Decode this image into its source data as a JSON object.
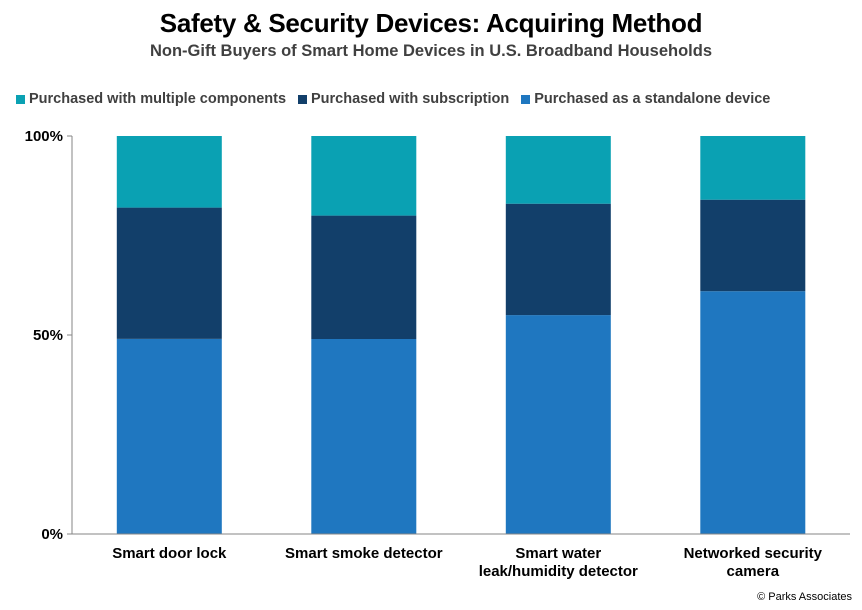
{
  "chart_data": {
    "type": "bar",
    "stacked": true,
    "title": "Safety & Security Devices: Acquiring Method",
    "subtitle": "Non-Gift Buyers of Smart Home Devices  in U.S. Broadband Households",
    "categories": [
      [
        "Smart door lock"
      ],
      [
        "Smart smoke detector"
      ],
      [
        "Smart water",
        "leak/humidity detector"
      ],
      [
        "Networked security",
        "camera"
      ]
    ],
    "series": [
      {
        "name": "Purchased as a standalone device",
        "color": "#1f77c0",
        "values": [
          49,
          49,
          55,
          61
        ]
      },
      {
        "name": "Purchased with subscription",
        "color": "#123f6a",
        "values": [
          33,
          31,
          28,
          23
        ]
      },
      {
        "name": "Purchased with multiple components",
        "color": "#0aa1b3",
        "values": [
          18,
          20,
          17,
          16
        ]
      }
    ],
    "legend_order": [
      2,
      1,
      0
    ],
    "legend_position": "top",
    "y_ticks": [
      "0%",
      "50%",
      "100%"
    ],
    "ylim": [
      0,
      100
    ],
    "grid": false
  },
  "footer": "© Parks Associates"
}
